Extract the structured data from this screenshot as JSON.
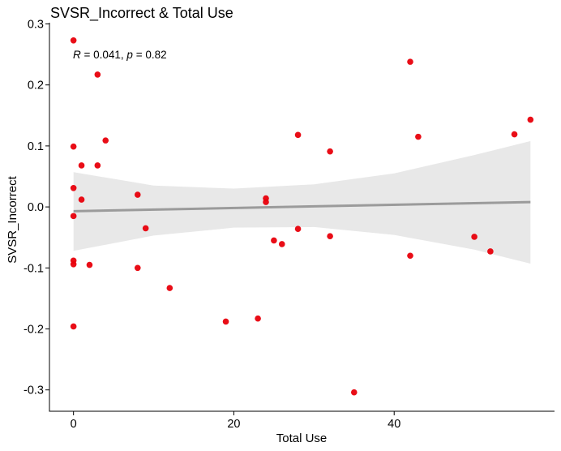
{
  "chart_data": {
    "type": "scatter",
    "title": "SVSR_Incorrect & Total Use",
    "xlabel": "Total Use",
    "ylabel": "SVSR_Incorrect",
    "xlim": [
      -3,
      60
    ],
    "ylim": [
      -0.335,
      0.302
    ],
    "x_ticks": [
      0,
      20,
      40
    ],
    "x_tick_labels": [
      "0",
      "20",
      "40"
    ],
    "y_ticks": [
      0.3,
      0.2,
      0.1,
      0.0,
      -0.1,
      -0.2,
      -0.3
    ],
    "y_tick_labels": [
      "0.3",
      "0.2",
      "0.1",
      "0.0",
      "-0.1",
      "-0.2",
      "-0.3"
    ],
    "grid": false,
    "legend": "none",
    "annotation": {
      "r_symbol": "R",
      "r_value": " = 0.041, ",
      "p_symbol": "p",
      "p_value": " = 0.82"
    },
    "points": [
      {
        "x": 0,
        "y": 0.273
      },
      {
        "x": 0,
        "y": 0.099
      },
      {
        "x": 0,
        "y": 0.031
      },
      {
        "x": 0,
        "y": -0.015
      },
      {
        "x": 0,
        "y": -0.088
      },
      {
        "x": 0,
        "y": -0.094
      },
      {
        "x": 0,
        "y": -0.196
      },
      {
        "x": 1,
        "y": 0.068
      },
      {
        "x": 1,
        "y": 0.012
      },
      {
        "x": 2,
        "y": -0.095
      },
      {
        "x": 3,
        "y": 0.217
      },
      {
        "x": 3,
        "y": 0.068
      },
      {
        "x": 4,
        "y": 0.109
      },
      {
        "x": 8,
        "y": 0.02
      },
      {
        "x": 8,
        "y": -0.1
      },
      {
        "x": 9,
        "y": -0.035
      },
      {
        "x": 12,
        "y": -0.133
      },
      {
        "x": 19,
        "y": -0.188
      },
      {
        "x": 23,
        "y": -0.183
      },
      {
        "x": 24,
        "y": 0.014
      },
      {
        "x": 24,
        "y": 0.008
      },
      {
        "x": 25,
        "y": -0.055
      },
      {
        "x": 26,
        "y": -0.061
      },
      {
        "x": 28,
        "y": 0.118
      },
      {
        "x": 28,
        "y": -0.036
      },
      {
        "x": 32,
        "y": 0.091
      },
      {
        "x": 32,
        "y": -0.048
      },
      {
        "x": 35,
        "y": -0.304
      },
      {
        "x": 42,
        "y": 0.238
      },
      {
        "x": 42,
        "y": -0.08
      },
      {
        "x": 43,
        "y": 0.115
      },
      {
        "x": 50,
        "y": -0.049
      },
      {
        "x": 52,
        "y": -0.073
      },
      {
        "x": 55,
        "y": 0.119
      },
      {
        "x": 57,
        "y": 0.143
      }
    ],
    "trend_line": {
      "x": [
        0,
        57
      ],
      "y": [
        -0.007,
        0.008
      ]
    },
    "confidence_band": {
      "x": [
        0,
        10,
        20,
        30,
        40,
        50,
        57
      ],
      "upper": [
        0.057,
        0.035,
        0.03,
        0.037,
        0.055,
        0.085,
        0.108
      ],
      "lower": [
        -0.072,
        -0.047,
        -0.034,
        -0.033,
        -0.046,
        -0.07,
        -0.093
      ]
    },
    "colors": {
      "point": "#e8000b",
      "trend_line": "#9b9b9b",
      "band": "#e8e8e8",
      "axis": "#000000"
    }
  }
}
